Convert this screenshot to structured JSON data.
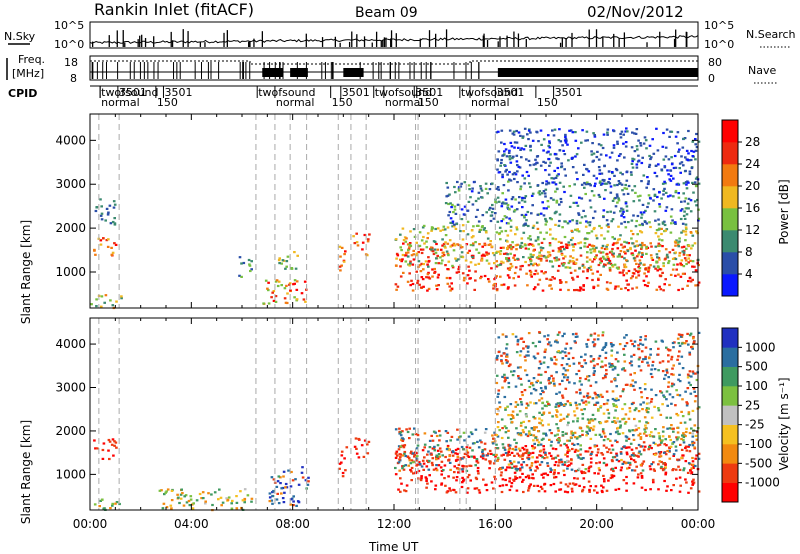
{
  "header": {
    "station": "Rankin Inlet (fitACF)",
    "beam": "Beam 09",
    "date": "02/Nov/2012"
  },
  "top_panels": {
    "nsky_label": "N.Sky",
    "nsearch_label": "N.Search",
    "freq_label_1": "Freq.",
    "freq_label_2": "[MHz]",
    "nave_label": "Nave",
    "cpid_label": "CPID",
    "noise_left_ticks": [
      "10^5",
      "10^0"
    ],
    "noise_right_ticks": [
      "10^5",
      "10^0"
    ],
    "freq_ticks": [
      "18",
      "8"
    ],
    "nave_ticks": [
      "80",
      "0"
    ],
    "cpid_labels": [
      {
        "t": 0.4,
        "row": 0,
        "text": "twofsound"
      },
      {
        "t": 1.1,
        "row": 0,
        "text": "3501"
      },
      {
        "t": 2.9,
        "row": 0,
        "text": "3501"
      },
      {
        "t": 0.4,
        "row": 1,
        "text": "normal"
      },
      {
        "t": 2.6,
        "row": 1,
        "text": "150"
      },
      {
        "t": 6.6,
        "row": 0,
        "text": "twofsound"
      },
      {
        "t": 7.3,
        "row": 1,
        "text": "normal"
      },
      {
        "t": 9.9,
        "row": 0,
        "text": "3501"
      },
      {
        "t": 9.5,
        "row": 1,
        "text": "150"
      },
      {
        "t": 11.2,
        "row": 0,
        "text": "twofsound"
      },
      {
        "t": 12.8,
        "row": 0,
        "text": "3501"
      },
      {
        "t": 11.6,
        "row": 1,
        "text": "normal"
      },
      {
        "t": 12.9,
        "row": 1,
        "text": "150"
      },
      {
        "t": 14.6,
        "row": 0,
        "text": "twofsound"
      },
      {
        "t": 16.0,
        "row": 0,
        "text": "3501"
      },
      {
        "t": 18.3,
        "row": 0,
        "text": "3501"
      },
      {
        "t": 15.0,
        "row": 1,
        "text": "normal"
      },
      {
        "t": 17.6,
        "row": 1,
        "text": "150"
      }
    ]
  },
  "chart_data": [
    {
      "type": "heatmap",
      "name": "power",
      "ylabel": "Slant Range [km]",
      "xlabel": "",
      "xlim": [
        0,
        24
      ],
      "ylim": [
        180,
        4600
      ],
      "yticks": [
        1000,
        2000,
        3000,
        4000
      ],
      "colorbar": {
        "label": "Power [dB]",
        "ticks": [
          "4",
          "8",
          "12",
          "16",
          "20",
          "24",
          "28"
        ],
        "colors": [
          "#0a18ff",
          "#2a4ea8",
          "#3b8a70",
          "#78c040",
          "#f0b820",
          "#f27a10",
          "#ee2a10",
          "#ff0000"
        ]
      },
      "scatter_regions": [
        {
          "t": [
            0.1,
            1.0
          ],
          "r": [
            1350,
            1850
          ],
          "v": [
            16,
            28
          ]
        },
        {
          "t": [
            0.0,
            1.2
          ],
          "r": [
            200,
            500
          ],
          "v": [
            8,
            22
          ]
        },
        {
          "t": [
            0.1,
            1.0
          ],
          "r": [
            2100,
            2700
          ],
          "v": [
            4,
            12
          ]
        },
        {
          "t": [
            5.8,
            6.4
          ],
          "r": [
            900,
            1400
          ],
          "v": [
            6,
            16
          ]
        },
        {
          "t": [
            6.8,
            8.6
          ],
          "r": [
            300,
            900
          ],
          "v": [
            14,
            30
          ]
        },
        {
          "t": [
            7.4,
            8.2
          ],
          "r": [
            1000,
            1500
          ],
          "v": [
            8,
            18
          ]
        },
        {
          "t": [
            9.8,
            10.1
          ],
          "r": [
            900,
            1800
          ],
          "v": [
            18,
            28
          ]
        },
        {
          "t": [
            10.3,
            11.0
          ],
          "r": [
            1400,
            1900
          ],
          "v": [
            16,
            28
          ]
        },
        {
          "t": [
            12.0,
            24.0
          ],
          "r": [
            600,
            1700
          ],
          "v": [
            20,
            30
          ]
        },
        {
          "t": [
            12.0,
            24.0
          ],
          "r": [
            1100,
            2100
          ],
          "v": [
            10,
            20
          ]
        },
        {
          "t": [
            14.0,
            24.0
          ],
          "r": [
            2100,
            3100
          ],
          "v": [
            4,
            14
          ]
        },
        {
          "t": [
            16.0,
            24.0
          ],
          "r": [
            3000,
            4300
          ],
          "v": [
            4,
            10
          ]
        }
      ]
    },
    {
      "type": "heatmap",
      "name": "velocity",
      "ylabel": "Slant Range [km]",
      "xlabel": "Time UT",
      "xlim": [
        0,
        24
      ],
      "ylim": [
        180,
        4600
      ],
      "yticks": [
        1000,
        2000,
        3000,
        4000
      ],
      "xticks": [
        "00:00",
        "04:00",
        "08:00",
        "12:00",
        "16:00",
        "20:00",
        "00:00"
      ],
      "colorbar": {
        "label": "Velocity [m s⁻¹]",
        "ticks": [
          "1000",
          "500",
          "100",
          "25",
          "-25",
          "-100",
          "-500",
          "-1000"
        ],
        "colors": [
          "#2030c0",
          "#2a6ea0",
          "#3f9a60",
          "#7cc040",
          "#c0c0c0",
          "#f5c020",
          "#f28a10",
          "#ee3a10",
          "#ff0000"
        ]
      },
      "scatter_regions": [
        {
          "t": [
            0.1,
            1.0
          ],
          "r": [
            1350,
            1850
          ],
          "v": [
            -300,
            -100
          ]
        },
        {
          "t": [
            0.0,
            1.2
          ],
          "r": [
            200,
            500
          ],
          "v": [
            -25,
            25
          ]
        },
        {
          "t": [
            2.6,
            6.4
          ],
          "r": [
            200,
            700
          ],
          "v": [
            -25,
            25
          ]
        },
        {
          "t": [
            7.0,
            8.6
          ],
          "r": [
            300,
            1200
          ],
          "v": [
            -100,
            400
          ]
        },
        {
          "t": [
            9.8,
            10.1
          ],
          "r": [
            900,
            1800
          ],
          "v": [
            -300,
            -100
          ]
        },
        {
          "t": [
            10.3,
            11.0
          ],
          "r": [
            1400,
            1900
          ],
          "v": [
            -300,
            -100
          ]
        },
        {
          "t": [
            12.0,
            24.0
          ],
          "r": [
            600,
            1700
          ],
          "v": [
            -400,
            -100
          ]
        },
        {
          "t": [
            12.0,
            24.0
          ],
          "r": [
            1100,
            2100
          ],
          "v": [
            -100,
            100
          ]
        },
        {
          "t": [
            16.0,
            24.0
          ],
          "r": [
            1800,
            2700
          ],
          "v": [
            -25,
            25
          ]
        },
        {
          "t": [
            16.0,
            24.0
          ],
          "r": [
            2600,
            4300
          ],
          "v": [
            -150,
            200
          ]
        }
      ]
    }
  ]
}
